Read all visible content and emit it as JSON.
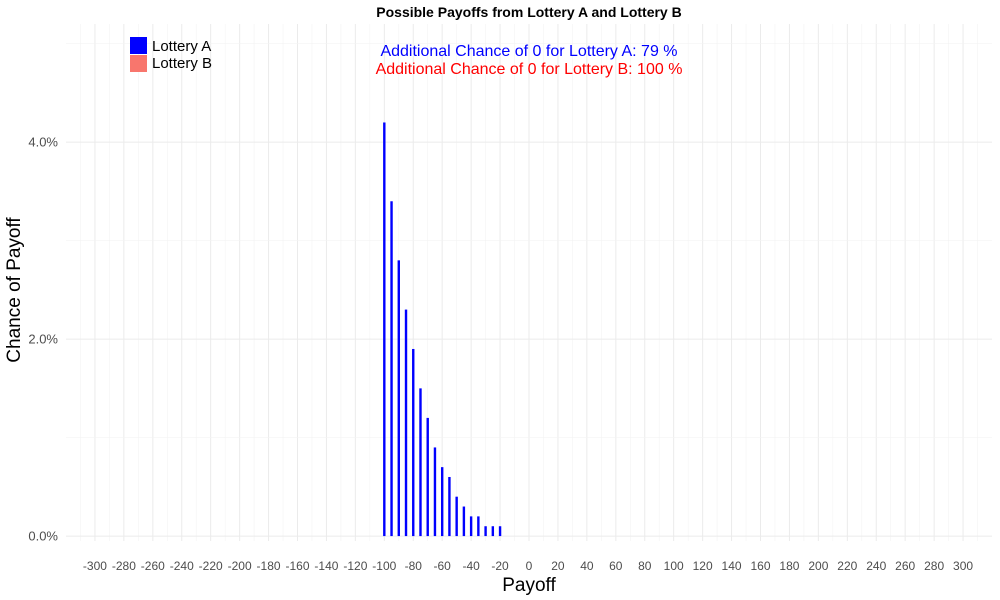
{
  "chart_data": {
    "type": "bar",
    "title": "Possible Payoffs from Lottery A and Lottery B",
    "xlabel": "Payoff",
    "ylabel": "Chance of Payoff",
    "xlim": [
      -320,
      320
    ],
    "ylim": [
      -0.0005,
      0.052
    ],
    "x_ticks": [
      -300,
      -280,
      -260,
      -240,
      -220,
      -200,
      -180,
      -160,
      -140,
      -120,
      -100,
      -80,
      -60,
      -40,
      -20,
      0,
      20,
      40,
      60,
      80,
      100,
      120,
      140,
      160,
      180,
      200,
      220,
      240,
      260,
      280,
      300
    ],
    "y_ticks": [
      0,
      0.02,
      0.04
    ],
    "y_tick_labels": [
      "0.0%",
      "2.0%",
      "4.0%"
    ],
    "grid": true,
    "legend_position": "top-left",
    "series": [
      {
        "name": "Lottery A",
        "color": "#0000ff",
        "x": [
          -100,
          -95,
          -90,
          -85,
          -80,
          -75,
          -70,
          -65,
          -60,
          -55,
          -50,
          -45,
          -40,
          -35,
          -30,
          -25,
          -20
        ],
        "values": [
          0.042,
          0.034,
          0.028,
          0.023,
          0.019,
          0.015,
          0.012,
          0.009,
          0.007,
          0.006,
          0.004,
          0.003,
          0.002,
          0.002,
          0.001,
          0.001,
          0.001
        ]
      },
      {
        "name": "Lottery B",
        "color": "#f8766d",
        "x": [],
        "values": []
      }
    ],
    "annotations": [
      {
        "text": "Additional Chance of 0 for Lottery A:  79 %",
        "color": "#0000ff"
      },
      {
        "text": "Additional Chance of 0 for Lottery B:  100 %",
        "color": "#ff0000"
      }
    ]
  }
}
